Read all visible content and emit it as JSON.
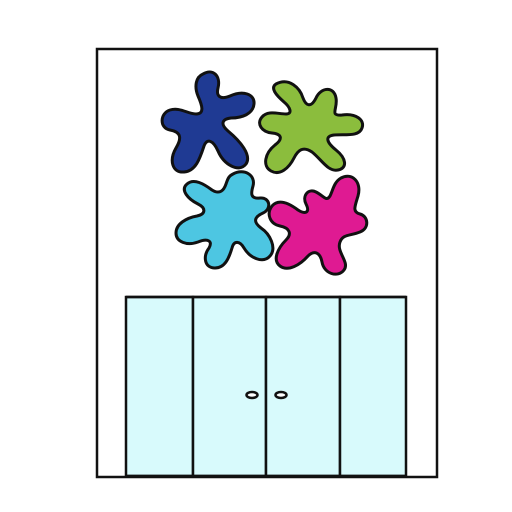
{
  "scene": {
    "background": "#ffffff",
    "wall": {
      "fill": "#ffffff",
      "stroke": "#111111"
    },
    "wall_art": {
      "icon": "splat-icon",
      "blobs": [
        {
          "name": "splat-navy",
          "color": "#1f3a93"
        },
        {
          "name": "splat-green",
          "color": "#8bbd3d"
        },
        {
          "name": "splat-cyan",
          "color": "#4dc6e2"
        },
        {
          "name": "splat-magenta",
          "color": "#df1a92"
        }
      ]
    },
    "cabinet": {
      "door_color": "#d8fafc",
      "door_count": 4,
      "stroke": "#111111",
      "handles": 2
    }
  }
}
